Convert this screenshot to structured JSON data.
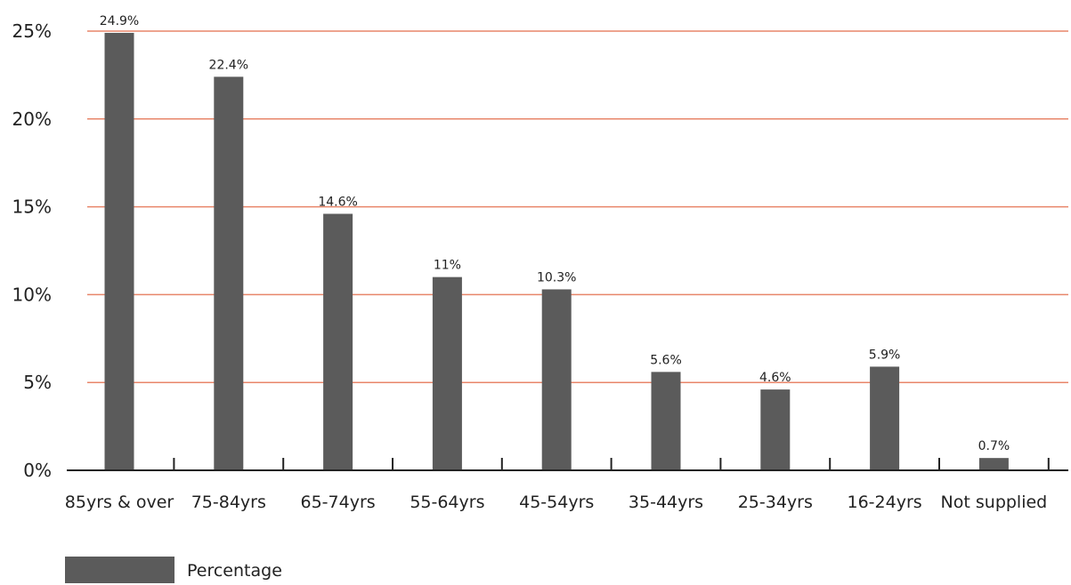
{
  "chart_data": {
    "type": "bar",
    "categories": [
      "85yrs & over",
      "75-84yrs",
      "65-74yrs",
      "55-64yrs",
      "45-54yrs",
      "35-44yrs",
      "25-34yrs",
      "16-24yrs",
      "Not supplied"
    ],
    "series": [
      {
        "name": "Percentage",
        "values": [
          24.9,
          22.4,
          14.6,
          11,
          10.3,
          5.6,
          4.6,
          5.9,
          0.7
        ],
        "labels": [
          "24.9%",
          "22.4%",
          "14.6%",
          "11%",
          "10.3%",
          "5.6%",
          "4.6%",
          "5.9%",
          "0.7%"
        ]
      }
    ],
    "yticks": [
      0,
      5,
      10,
      15,
      20,
      25
    ],
    "ytick_labels": [
      "0%",
      "5%",
      "10%",
      "15%",
      "20%",
      "25%"
    ],
    "ylim": [
      0,
      25
    ],
    "grid": true,
    "legend_position": "bottom-left",
    "colors": {
      "bar": "#5b5b5b",
      "grid": "#e8866a",
      "axis": "#222222"
    }
  }
}
